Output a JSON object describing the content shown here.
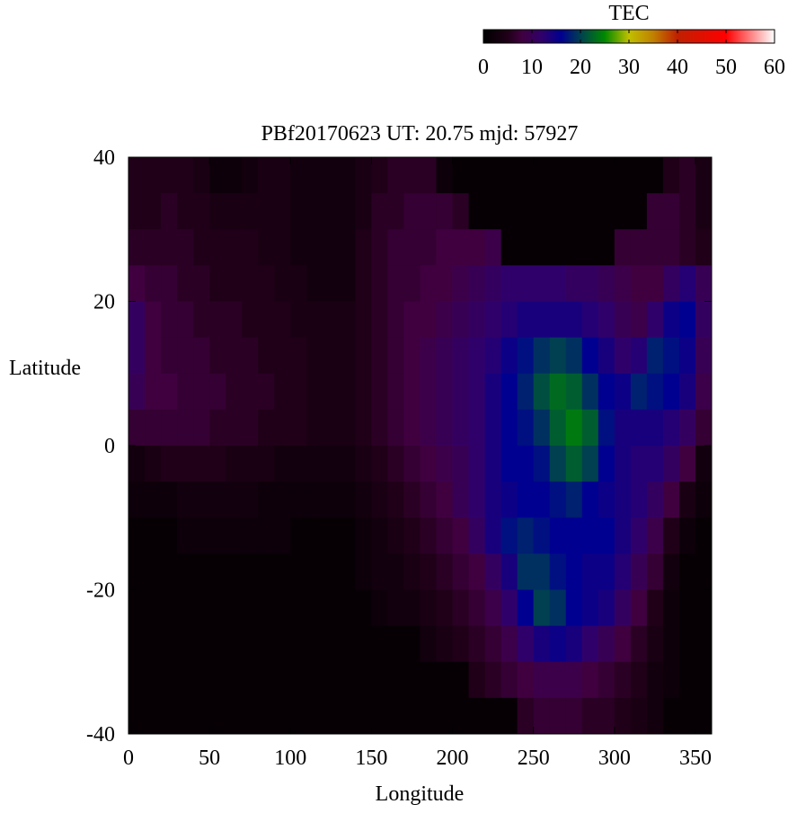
{
  "chart_data": {
    "type": "heatmap",
    "title": "PBf20170623  UT: 20.75  mjd: 57927",
    "xlabel": "Longitude",
    "ylabel": "Latitude",
    "xlim": [
      0,
      360
    ],
    "ylim": [
      -40,
      40
    ],
    "xticks": [
      "0",
      "50",
      "100",
      "150",
      "200",
      "250",
      "300",
      "350"
    ],
    "xtick_values": [
      0,
      50,
      100,
      150,
      200,
      250,
      300,
      350
    ],
    "yticks": [
      "40",
      "20",
      "0",
      "-20",
      "-40"
    ],
    "ytick_values": [
      40,
      20,
      0,
      -20,
      -40
    ],
    "colorbar": {
      "label": "TEC",
      "range": [
        0,
        60
      ],
      "ticks": [
        "0",
        "10",
        "20",
        "30",
        "40",
        "50",
        "60"
      ],
      "tick_values": [
        0,
        10,
        20,
        30,
        40,
        50,
        60
      ],
      "placement": "top-right",
      "colormap": [
        [
          0,
          "#000000"
        ],
        [
          5,
          "#200018"
        ],
        [
          8,
          "#400040"
        ],
        [
          12,
          "#30006a"
        ],
        [
          16,
          "#000090"
        ],
        [
          20,
          "#004050"
        ],
        [
          25,
          "#008800"
        ],
        [
          30,
          "#c0c000"
        ],
        [
          35,
          "#c08000"
        ],
        [
          40,
          "#c02000"
        ],
        [
          50,
          "#ff0000"
        ],
        [
          60,
          "#ffffff"
        ]
      ]
    },
    "lon_centers": [
      5,
      15,
      25,
      35,
      45,
      55,
      65,
      75,
      85,
      95,
      105,
      115,
      125,
      135,
      145,
      155,
      165,
      175,
      185,
      195,
      205,
      215,
      225,
      235,
      245,
      255,
      265,
      275,
      285,
      295,
      305,
      315,
      325,
      335,
      345,
      355
    ],
    "lat_centers": [
      37.5,
      32.5,
      27.5,
      22.5,
      17.5,
      12.5,
      7.5,
      2.5,
      -2.5,
      -7.5,
      -12.5,
      -17.5,
      -22.5,
      -27.5,
      -32.5,
      -37.5
    ],
    "values": [
      [
        5,
        5,
        5,
        5,
        4,
        2,
        2,
        3,
        4,
        4,
        3,
        3,
        3,
        3,
        4,
        5,
        6,
        6,
        6,
        2,
        1,
        1,
        1,
        1,
        1,
        1,
        1,
        1,
        1,
        1,
        1,
        1,
        1,
        5,
        6,
        4
      ],
      [
        5,
        5,
        6,
        5,
        5,
        4,
        4,
        4,
        4,
        4,
        3,
        3,
        3,
        3,
        4,
        6,
        6,
        7,
        7,
        7,
        6,
        1,
        1,
        1,
        1,
        1,
        1,
        1,
        1,
        1,
        1,
        1,
        7,
        7,
        6,
        4
      ],
      [
        6,
        6,
        6,
        6,
        5,
        5,
        5,
        5,
        4,
        4,
        3,
        3,
        3,
        3,
        5,
        6,
        7,
        7,
        7,
        8,
        8,
        8,
        9,
        1,
        1,
        1,
        1,
        1,
        1,
        1,
        7,
        7,
        7,
        7,
        6,
        5
      ],
      [
        8,
        7,
        7,
        6,
        6,
        5,
        5,
        5,
        5,
        4,
        4,
        3,
        3,
        3,
        5,
        6,
        7,
        7,
        8,
        8,
        9,
        10,
        11,
        12,
        12,
        12,
        12,
        11,
        11,
        10,
        9,
        8,
        8,
        11,
        13,
        10
      ],
      [
        11,
        8,
        7,
        7,
        6,
        6,
        6,
        5,
        5,
        5,
        4,
        4,
        4,
        4,
        5,
        6,
        7,
        8,
        8,
        9,
        10,
        11,
        12,
        13,
        14,
        14,
        14,
        14,
        13,
        12,
        10,
        9,
        12,
        15,
        16,
        11
      ],
      [
        11,
        8,
        7,
        7,
        7,
        6,
        6,
        6,
        5,
        5,
        5,
        4,
        4,
        4,
        5,
        6,
        7,
        8,
        9,
        10,
        11,
        12,
        13,
        15,
        17,
        19,
        20,
        19,
        16,
        14,
        12,
        13,
        18,
        17,
        15,
        10
      ],
      [
        10,
        8,
        8,
        7,
        7,
        7,
        6,
        6,
        6,
        5,
        5,
        4,
        4,
        4,
        5,
        6,
        7,
        8,
        9,
        10,
        11,
        12,
        14,
        16,
        18,
        21,
        23,
        22,
        19,
        16,
        15,
        18,
        17,
        16,
        14,
        9
      ],
      [
        7,
        7,
        7,
        7,
        7,
        6,
        6,
        6,
        5,
        5,
        5,
        4,
        4,
        4,
        5,
        6,
        7,
        8,
        9,
        10,
        11,
        12,
        14,
        16,
        17,
        19,
        22,
        24,
        22,
        17,
        14,
        14,
        14,
        13,
        11,
        7
      ],
      [
        3,
        4,
        5,
        5,
        5,
        5,
        4,
        4,
        4,
        3,
        3,
        3,
        3,
        3,
        4,
        5,
        6,
        7,
        8,
        9,
        10,
        12,
        14,
        16,
        16,
        17,
        20,
        22,
        20,
        16,
        14,
        13,
        13,
        11,
        8,
        3
      ],
      [
        2,
        2,
        2,
        3,
        3,
        3,
        3,
        3,
        2,
        2,
        2,
        2,
        2,
        2,
        3,
        4,
        5,
        6,
        7,
        8,
        10,
        12,
        14,
        15,
        16,
        16,
        17,
        18,
        16,
        15,
        14,
        13,
        11,
        8,
        4,
        2
      ],
      [
        1,
        1,
        1,
        2,
        2,
        2,
        2,
        2,
        2,
        2,
        1,
        1,
        1,
        1,
        2,
        3,
        4,
        5,
        6,
        7,
        8,
        11,
        14,
        17,
        18,
        17,
        16,
        16,
        16,
        16,
        14,
        12,
        9,
        5,
        2,
        1
      ],
      [
        1,
        1,
        1,
        1,
        1,
        1,
        1,
        1,
        1,
        1,
        1,
        1,
        1,
        1,
        2,
        3,
        3,
        4,
        5,
        6,
        7,
        8,
        11,
        14,
        19,
        19,
        17,
        16,
        15,
        15,
        13,
        10,
        7,
        3,
        1,
        1
      ],
      [
        1,
        1,
        1,
        1,
        1,
        1,
        1,
        1,
        1,
        1,
        1,
        1,
        1,
        1,
        1,
        2,
        3,
        3,
        4,
        5,
        6,
        7,
        9,
        12,
        16,
        20,
        19,
        16,
        15,
        14,
        11,
        8,
        5,
        2,
        1,
        1
      ],
      [
        1,
        1,
        1,
        1,
        1,
        1,
        1,
        1,
        1,
        1,
        1,
        1,
        1,
        1,
        1,
        1,
        1,
        1,
        3,
        4,
        5,
        6,
        7,
        9,
        12,
        14,
        15,
        14,
        12,
        10,
        8,
        6,
        4,
        2,
        1,
        1
      ],
      [
        1,
        1,
        1,
        1,
        1,
        1,
        1,
        1,
        1,
        1,
        1,
        1,
        1,
        1,
        1,
        1,
        1,
        1,
        1,
        1,
        1,
        5,
        6,
        7,
        8,
        9,
        9,
        9,
        8,
        7,
        6,
        5,
        3,
        2,
        1,
        1
      ],
      [
        1,
        1,
        1,
        1,
        1,
        1,
        1,
        1,
        1,
        1,
        1,
        1,
        1,
        1,
        1,
        1,
        1,
        1,
        1,
        1,
        1,
        1,
        1,
        1,
        6,
        7,
        7,
        7,
        6,
        6,
        5,
        4,
        3,
        1,
        1,
        1
      ]
    ]
  }
}
